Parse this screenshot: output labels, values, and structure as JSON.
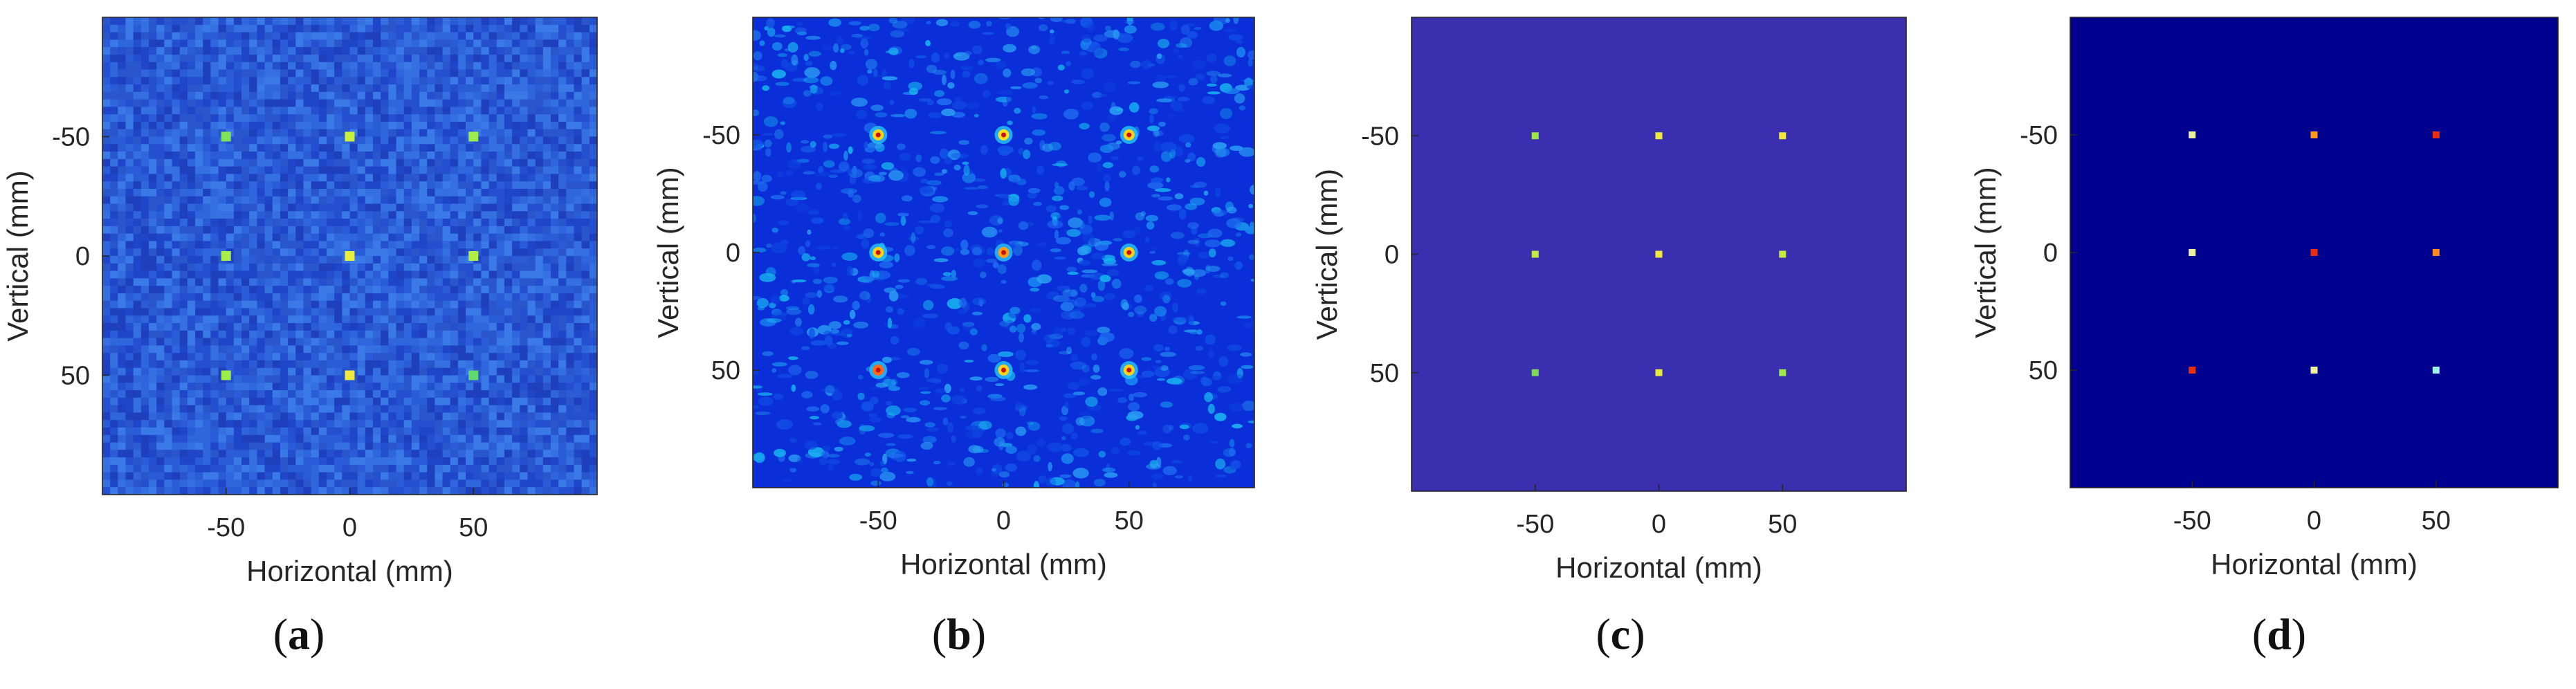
{
  "chart_data": [
    {
      "type": "heatmap",
      "panel_label": "a",
      "xlabel": "Horizontal (mm)",
      "ylabel": "Vertical (mm)",
      "xticks": [
        -50,
        0,
        50
      ],
      "yticks": [
        -50,
        0,
        50
      ],
      "xlim": [
        -100,
        100
      ],
      "ylim": [
        -100,
        100
      ],
      "y_reversed": true,
      "grid": false,
      "background_style": "coarse-pixel-noise",
      "background_color": "#2a5fd6",
      "targets": [
        {
          "x": -50,
          "y": -50,
          "color": "#7fe35a"
        },
        {
          "x": 0,
          "y": -50,
          "color": "#c8f03a"
        },
        {
          "x": 50,
          "y": -50,
          "color": "#9cec4a"
        },
        {
          "x": -50,
          "y": 0,
          "color": "#a8ee48"
        },
        {
          "x": 0,
          "y": 0,
          "color": "#e8f03a"
        },
        {
          "x": 50,
          "y": 0,
          "color": "#b0ee44"
        },
        {
          "x": -50,
          "y": 50,
          "color": "#9cec4a"
        },
        {
          "x": 0,
          "y": 50,
          "color": "#f0e83a"
        },
        {
          "x": 50,
          "y": 50,
          "color": "#5fd870"
        }
      ]
    },
    {
      "type": "heatmap",
      "panel_label": "b",
      "xlabel": "Horizontal (mm)",
      "ylabel": "Vertical (mm)",
      "xticks": [
        -50,
        0,
        50
      ],
      "yticks": [
        -50,
        0,
        50
      ],
      "xlim": [
        -100,
        100
      ],
      "ylim": [
        -100,
        100
      ],
      "y_reversed": true,
      "grid": false,
      "background_style": "speckle",
      "background_color": "#0a2fd8",
      "targets": [
        {
          "x": -50,
          "y": -50,
          "color": "#ffd21a"
        },
        {
          "x": 0,
          "y": -50,
          "color": "#ffe01a"
        },
        {
          "x": 50,
          "y": -50,
          "color": "#ffd21a"
        },
        {
          "x": -50,
          "y": 0,
          "color": "#ffd21a"
        },
        {
          "x": 0,
          "y": 0,
          "color": "#ff9a1a"
        },
        {
          "x": 50,
          "y": 0,
          "color": "#ffd21a"
        },
        {
          "x": -50,
          "y": 50,
          "color": "#ff6a1a"
        },
        {
          "x": 0,
          "y": 50,
          "color": "#ffd21a"
        },
        {
          "x": 50,
          "y": 50,
          "color": "#ffd21a"
        }
      ]
    },
    {
      "type": "heatmap",
      "panel_label": "c",
      "xlabel": "Horizontal (mm)",
      "ylabel": "Vertical (mm)",
      "xticks": [
        -50,
        0,
        50
      ],
      "yticks": [
        -50,
        0,
        50
      ],
      "xlim": [
        -100,
        100
      ],
      "ylim": [
        -100,
        100
      ],
      "y_reversed": true,
      "grid": false,
      "background_style": "flat",
      "background_color": "#3a2fae",
      "targets": [
        {
          "x": -50,
          "y": -50,
          "color": "#9ee64a"
        },
        {
          "x": 0,
          "y": -50,
          "color": "#f0e83a"
        },
        {
          "x": 50,
          "y": -50,
          "color": "#f0e83a"
        },
        {
          "x": -50,
          "y": 0,
          "color": "#c8ea40"
        },
        {
          "x": 0,
          "y": 0,
          "color": "#f0e83a"
        },
        {
          "x": 50,
          "y": 0,
          "color": "#c8ea40"
        },
        {
          "x": -50,
          "y": 50,
          "color": "#7fd85a"
        },
        {
          "x": 0,
          "y": 50,
          "color": "#e8e83a"
        },
        {
          "x": 50,
          "y": 50,
          "color": "#9ee64a"
        }
      ]
    },
    {
      "type": "heatmap",
      "panel_label": "d",
      "xlabel": "Horizontal (mm)",
      "ylabel": "Vertical (mm)",
      "xticks": [
        -50,
        0,
        50
      ],
      "yticks": [
        -50,
        0,
        50
      ],
      "xlim": [
        -100,
        100
      ],
      "ylim": [
        -100,
        100
      ],
      "y_reversed": true,
      "grid": false,
      "background_style": "flat",
      "background_color": "#00008f",
      "targets": [
        {
          "x": -50,
          "y": -50,
          "color": "#e8f0a0"
        },
        {
          "x": 0,
          "y": -50,
          "color": "#ff9a1a"
        },
        {
          "x": 50,
          "y": -50,
          "color": "#e83010"
        },
        {
          "x": -50,
          "y": 0,
          "color": "#e8f0a0"
        },
        {
          "x": 0,
          "y": 0,
          "color": "#e83010"
        },
        {
          "x": 50,
          "y": 0,
          "color": "#ff8a1a"
        },
        {
          "x": -50,
          "y": 50,
          "color": "#e83010"
        },
        {
          "x": 0,
          "y": 50,
          "color": "#f0f0a0"
        },
        {
          "x": 50,
          "y": 50,
          "color": "#a0f0f0"
        }
      ]
    }
  ]
}
